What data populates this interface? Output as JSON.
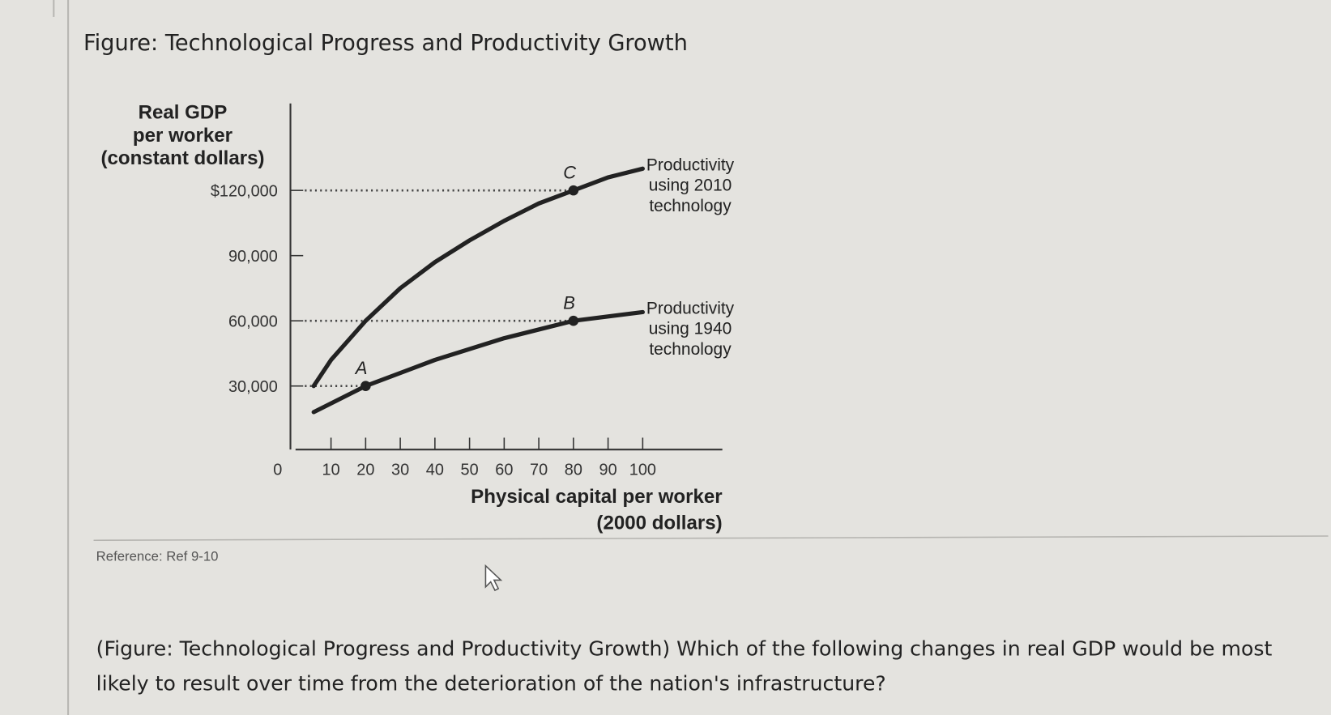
{
  "header": {
    "title": "Figure: Technological Progress and Productivity Growth"
  },
  "chart_data": {
    "type": "line",
    "ylabel": [
      "Real GDP",
      "per worker",
      "(constant dollars)"
    ],
    "xlabel": [
      "Physical capital per worker",
      "(2000 dollars)"
    ],
    "xlim": [
      0,
      123
    ],
    "ylim": [
      0,
      160000
    ],
    "xticks": [
      0,
      10,
      20,
      30,
      40,
      50,
      60,
      70,
      80,
      90,
      100
    ],
    "yticks": [
      {
        "value": 30000,
        "label": "30,000"
      },
      {
        "value": 60000,
        "label": "60,000"
      },
      {
        "value": 90000,
        "label": "90,000"
      },
      {
        "value": 120000,
        "label": "$120,000"
      }
    ],
    "series": [
      {
        "name": "Productivity using 2010 technology",
        "color": "#222222",
        "x": [
          5,
          10,
          20,
          30,
          40,
          50,
          60,
          70,
          80,
          90,
          100
        ],
        "values": [
          30000,
          42000,
          60000,
          75000,
          87000,
          97000,
          106000,
          114000,
          120000,
          126000,
          130000
        ]
      },
      {
        "name": "Productivity using 1940 technology",
        "color": "#222222",
        "x": [
          5,
          20,
          40,
          60,
          80,
          100
        ],
        "values": [
          18000,
          30000,
          42000,
          52000,
          60000,
          64000
        ]
      }
    ],
    "annotations": [
      {
        "label": "A",
        "x": 20,
        "y": 30000
      },
      {
        "label": "B",
        "x": 80,
        "y": 60000
      },
      {
        "label": "C",
        "x": 80,
        "y": 120000
      }
    ]
  },
  "reference": "Reference: Ref 9-10",
  "question": "(Figure: Technological Progress and Productivity Growth) Which of the following changes in real GDP would be most likely to result over time from the deterioration of the nation's infrastructure?"
}
